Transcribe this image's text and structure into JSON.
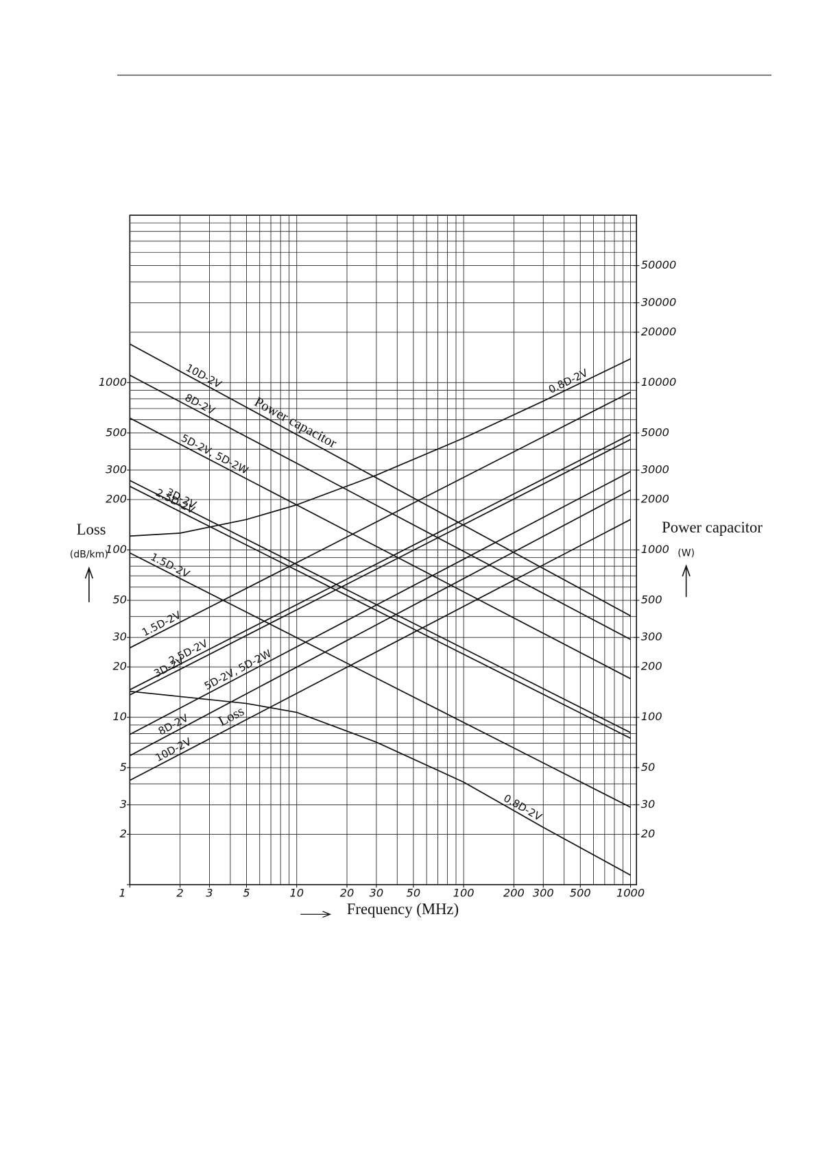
{
  "chart_data": {
    "type": "line",
    "log_x": true,
    "log_y": true,
    "grid": true,
    "xlabel": "Frequency (MHz)",
    "ylabel": "Loss",
    "ylabel_unit": "(dB/km)",
    "y2label": "Power capacitor",
    "y2label_unit": "(W)",
    "annotations": [
      "Power capacitor",
      "Loss"
    ],
    "xlim": [
      1,
      1000
    ],
    "xticks": [
      1,
      2,
      3,
      5,
      10,
      20,
      30,
      50,
      100,
      200,
      300,
      500,
      1000
    ],
    "ylim": [
      1,
      10000
    ],
    "yticks": [
      1,
      2,
      3,
      5,
      10,
      20,
      30,
      50,
      100,
      200,
      300,
      500,
      1000
    ],
    "y2lim": [
      10,
      100000
    ],
    "y2ticks": [
      20,
      30,
      50,
      100,
      200,
      300,
      500,
      1000,
      2000,
      3000,
      5000,
      10000,
      20000,
      30000,
      50000
    ],
    "x_grid": [
      1,
      2,
      3,
      4,
      5,
      6,
      7,
      8,
      9,
      10,
      20,
      30,
      40,
      50,
      60,
      70,
      80,
      90,
      100,
      200,
      300,
      400,
      500,
      600,
      700,
      800,
      900,
      1000
    ],
    "y_grid": [
      1,
      2,
      3,
      4,
      5,
      6,
      7,
      8,
      9,
      10,
      20,
      30,
      40,
      50,
      60,
      70,
      80,
      90,
      100,
      200,
      300,
      400,
      500,
      600,
      700,
      800,
      900,
      1000,
      2000,
      3000,
      4000,
      5000,
      6000,
      7000,
      8000,
      9000,
      10000
    ],
    "series": [
      {
        "name": "10D-2V",
        "axis": "y2",
        "color": "#111",
        "x": [
          1,
          1000
        ],
        "values": [
          17000,
          404
        ]
      },
      {
        "name": "8D-2V",
        "axis": "y2",
        "color": "#111",
        "x": [
          1,
          1000
        ],
        "values": [
          11070,
          292
        ]
      },
      {
        "name": "5D-2V, 5D-2W",
        "axis": "y2",
        "color": "#111",
        "x": [
          1,
          1000
        ],
        "values": [
          6140,
          170
        ]
      },
      {
        "name": "3D-2V",
        "axis": "y2",
        "color": "#111",
        "x": [
          1,
          1000
        ],
        "values": [
          2600,
          81
        ]
      },
      {
        "name": "2.5D-2V",
        "axis": "y2",
        "color": "#111",
        "x": [
          1,
          1000
        ],
        "values": [
          2400,
          75
        ]
      },
      {
        "name": "1.5D-2V",
        "axis": "y2",
        "color": "#111",
        "x": [
          1,
          1000
        ],
        "values": [
          960,
          29
        ]
      },
      {
        "name": "0.8D-2V",
        "axis": "y2",
        "color": "#111",
        "x": [
          1,
          5,
          10,
          30,
          100,
          300,
          1000
        ],
        "values": [
          143,
          121,
          107,
          71,
          41,
          22,
          11.4
        ]
      },
      {
        "name": "0.8D-2V",
        "color": "#111",
        "x": [
          1,
          2,
          5,
          10,
          30,
          100,
          300,
          1000
        ],
        "values": [
          121,
          126,
          152,
          186,
          280,
          466,
          775,
          1387
        ]
      },
      {
        "name": "1.5D-2V",
        "color": "#111",
        "x": [
          1,
          1000
        ],
        "values": [
          26,
          876
        ]
      },
      {
        "name": "3D-2V",
        "color": "#111",
        "x": [
          1,
          1000
        ],
        "values": [
          13.6,
          457
        ]
      },
      {
        "name": "2.5D-2V",
        "color": "#111",
        "x": [
          1,
          1000
        ],
        "values": [
          14.6,
          490
        ]
      },
      {
        "name": "5D-2V, 5D-2W",
        "color": "#111",
        "x": [
          1,
          1000
        ],
        "values": [
          7.9,
          294
        ]
      },
      {
        "name": "8D-2V",
        "color": "#111",
        "x": [
          1,
          1000
        ],
        "values": [
          5.9,
          228
        ]
      },
      {
        "name": "10D-2V",
        "color": "#111",
        "x": [
          1,
          1000
        ],
        "values": [
          4.2,
          152
        ]
      }
    ]
  }
}
